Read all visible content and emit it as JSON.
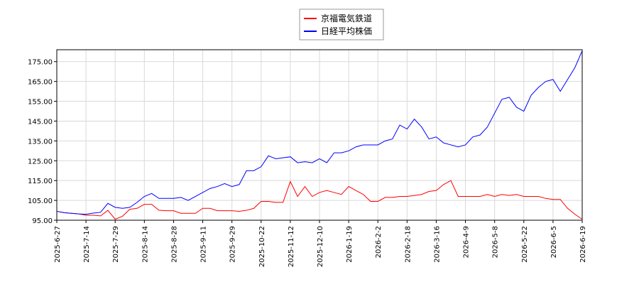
{
  "chart_data": {
    "type": "line",
    "categories": [
      "2025-6-27",
      null,
      null,
      null,
      "2025-7-14",
      null,
      null,
      null,
      "2025-7-29",
      null,
      null,
      null,
      "2025-8-14",
      null,
      null,
      null,
      "2025-8-28",
      null,
      null,
      null,
      "2025-9-11",
      null,
      null,
      null,
      "2025-9-29",
      null,
      null,
      null,
      "2025-10-22",
      null,
      null,
      null,
      "2025-11-12",
      null,
      null,
      null,
      "2025-12-10",
      null,
      null,
      null,
      "2026-1-19",
      null,
      null,
      null,
      "2026-2-2",
      null,
      null,
      null,
      "2026-2-18",
      null,
      null,
      null,
      "2026-3-16",
      null,
      null,
      null,
      "2026-4-9",
      null,
      null,
      null,
      "2026-5-8",
      null,
      null,
      null,
      "2026-5-22",
      null,
      null,
      null,
      "2026-6-5",
      null,
      null,
      null,
      "2026-6-19"
    ],
    "series": [
      {
        "name": "京福電気鉄道",
        "color": "#ff0000",
        "values": [
          99.5,
          98.8,
          98.5,
          98.2,
          97.5,
          97.5,
          97.2,
          100,
          95.5,
          97,
          100.5,
          101,
          103,
          103,
          100,
          99.8,
          99.8,
          98.5,
          98.5,
          98.5,
          101,
          101,
          99.8,
          99.8,
          99.8,
          99.5,
          100,
          101,
          104.5,
          104.5,
          104,
          104,
          114.5,
          107,
          112,
          107,
          109,
          110,
          109,
          108,
          112,
          110,
          108,
          104.5,
          104.5,
          106.5,
          106.5,
          107,
          107,
          107.5,
          108,
          109.5,
          110,
          113,
          115,
          107,
          107,
          107,
          107,
          108,
          107,
          108,
          107.5,
          108,
          107,
          107,
          107,
          106,
          105.5,
          105.5,
          101,
          98,
          95.5
        ]
      },
      {
        "name": "日経平均株価",
        "color": "#0000ff",
        "values": [
          99.5,
          98.8,
          98.5,
          98.2,
          98,
          98.6,
          99,
          103.5,
          101.5,
          101,
          101.5,
          104,
          107,
          108.5,
          106,
          106,
          106,
          106.5,
          105,
          107,
          109,
          111,
          112,
          113.5,
          112,
          113,
          120,
          120,
          122,
          127.5,
          126,
          126.5,
          127,
          124,
          124.5,
          124,
          126,
          124,
          129,
          129,
          130,
          132,
          133,
          133,
          133,
          135,
          136,
          143,
          141,
          146,
          142,
          136,
          137,
          134,
          133,
          132,
          133,
          137,
          138,
          142,
          149,
          156,
          157,
          152,
          150,
          158,
          162,
          165,
          166,
          160,
          166,
          172,
          180.5
        ]
      }
    ],
    "ylim": [
      95,
      181
    ],
    "yticks": [
      {
        "value": 95,
        "label": "95.00"
      },
      {
        "value": 105,
        "label": "105.00"
      },
      {
        "value": 115,
        "label": "115.00"
      },
      {
        "value": 125,
        "label": "125.00"
      },
      {
        "value": 135,
        "label": "135.00"
      },
      {
        "value": 145,
        "label": "145.00"
      },
      {
        "value": 155,
        "label": "155.00"
      },
      {
        "value": 165,
        "label": "165.00"
      },
      {
        "value": 175,
        "label": "175.00"
      }
    ],
    "grid": true
  }
}
